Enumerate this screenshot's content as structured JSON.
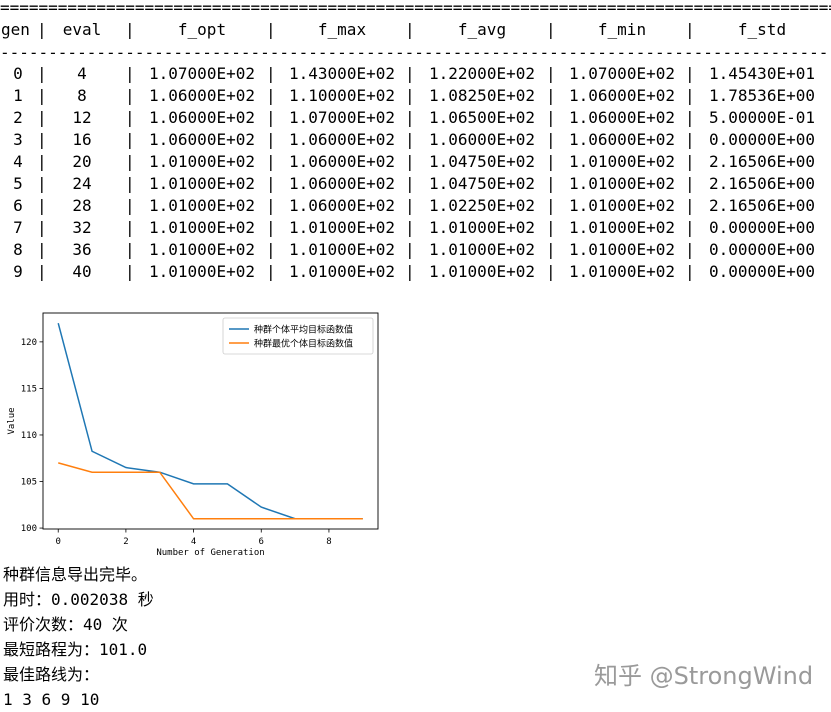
{
  "table": {
    "rule_top": "=====================================================================================================================",
    "rule_mid": "---------------------------------------------------------------------------------------------------------------------",
    "headers": [
      "gen",
      "eval",
      "f_opt",
      "f_max",
      "f_avg",
      "f_min",
      "f_std"
    ],
    "rows": [
      [
        "0",
        "4",
        "1.07000E+02",
        "1.43000E+02",
        "1.22000E+02",
        "1.07000E+02",
        "1.45430E+01"
      ],
      [
        "1",
        "8",
        "1.06000E+02",
        "1.10000E+02",
        "1.08250E+02",
        "1.06000E+02",
        "1.78536E+00"
      ],
      [
        "2",
        "12",
        "1.06000E+02",
        "1.07000E+02",
        "1.06500E+02",
        "1.06000E+02",
        "5.00000E-01"
      ],
      [
        "3",
        "16",
        "1.06000E+02",
        "1.06000E+02",
        "1.06000E+02",
        "1.06000E+02",
        "0.00000E+00"
      ],
      [
        "4",
        "20",
        "1.01000E+02",
        "1.06000E+02",
        "1.04750E+02",
        "1.01000E+02",
        "2.16506E+00"
      ],
      [
        "5",
        "24",
        "1.01000E+02",
        "1.06000E+02",
        "1.04750E+02",
        "1.01000E+02",
        "2.16506E+00"
      ],
      [
        "6",
        "28",
        "1.01000E+02",
        "1.06000E+02",
        "1.02250E+02",
        "1.01000E+02",
        "2.16506E+00"
      ],
      [
        "7",
        "32",
        "1.01000E+02",
        "1.01000E+02",
        "1.01000E+02",
        "1.01000E+02",
        "0.00000E+00"
      ],
      [
        "8",
        "36",
        "1.01000E+02",
        "1.01000E+02",
        "1.01000E+02",
        "1.01000E+02",
        "0.00000E+00"
      ],
      [
        "9",
        "40",
        "1.01000E+02",
        "1.01000E+02",
        "1.01000E+02",
        "1.01000E+02",
        "0.00000E+00"
      ]
    ]
  },
  "chart_data": {
    "type": "line",
    "x": [
      0,
      1,
      2,
      3,
      4,
      5,
      6,
      7,
      8,
      9
    ],
    "series": [
      {
        "name": "种群个体平均目标函数值",
        "color": "#1f77b4",
        "values": [
          122.0,
          108.25,
          106.5,
          106.0,
          104.75,
          104.75,
          102.25,
          101.0,
          101.0,
          101.0
        ]
      },
      {
        "name": "种群最优个体目标函数值",
        "color": "#ff7f0e",
        "values": [
          107.0,
          106.0,
          106.0,
          106.0,
          101.0,
          101.0,
          101.0,
          101.0,
          101.0,
          101.0
        ]
      }
    ],
    "xlabel": "Number of Generation",
    "ylabel": "Value",
    "xticks": [
      0,
      2,
      4,
      6,
      8
    ],
    "yticks": [
      100,
      105,
      110,
      115,
      120
    ],
    "xlim": [
      -0.45,
      9.45
    ],
    "ylim": [
      99.9,
      123.1
    ],
    "legend": "top-right",
    "grid": false
  },
  "log": {
    "lines": [
      {
        "label": "种群信息导出完毕。",
        "value": ""
      },
      {
        "label": "用时：",
        "value": "0.002038 秒"
      },
      {
        "label": "评价次数：",
        "value": "40 次"
      },
      {
        "label": "最短路程为：",
        "value": "101.0"
      },
      {
        "label": "最佳路线为：",
        "value": ""
      },
      {
        "label": "",
        "value": "1 3 6 9 10"
      }
    ]
  },
  "watermark": "知乎 @StrongWind"
}
